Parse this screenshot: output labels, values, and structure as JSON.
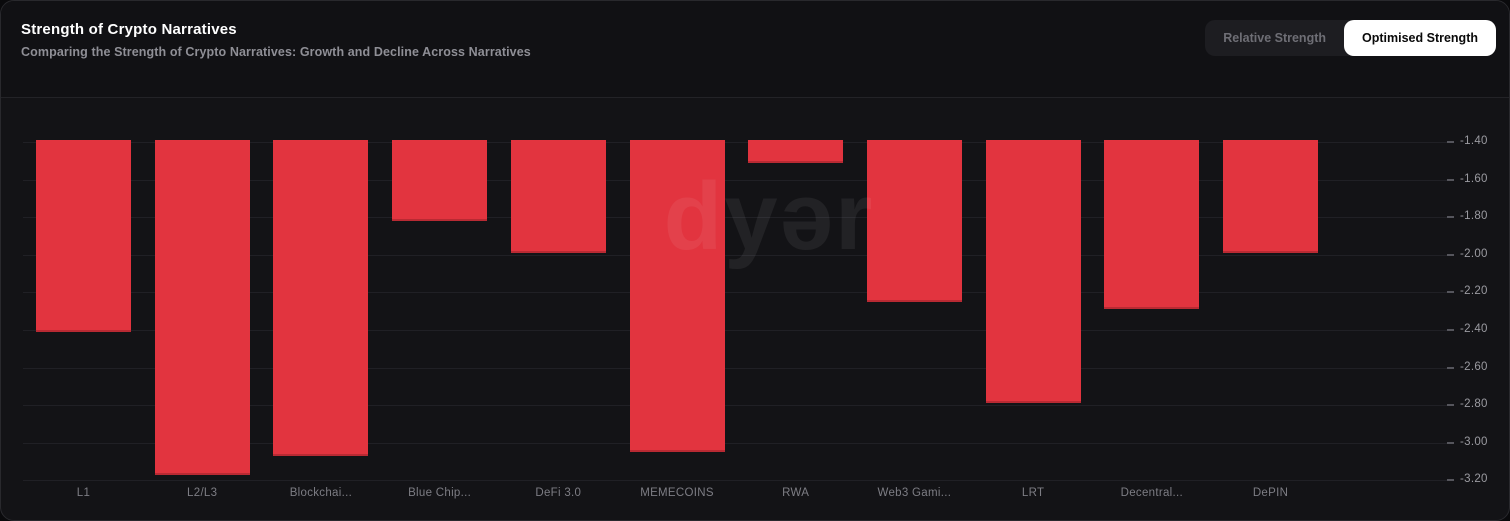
{
  "header": {
    "title": "Strength of Crypto Narratives",
    "subtitle": "Comparing the Strength of Crypto Narratives: Growth and Decline Across Narratives"
  },
  "toggle": {
    "options": [
      {
        "label": "Relative Strength",
        "active": false
      },
      {
        "label": "Optimised Strength",
        "active": true
      }
    ]
  },
  "watermark": "dyər",
  "colors": {
    "bar": "#e2343f",
    "card_background": "#131316",
    "header_background": "#111114",
    "gridline": "#202025",
    "toggle_active_background": "#ffffff",
    "toggle_active_text": "#0a0a0a",
    "toggle_inactive_text": "#6e6e75"
  },
  "chart_data": {
    "type": "bar",
    "title": "Strength of Crypto Narratives",
    "series_name": "Optimised Strength",
    "categories": [
      "L1",
      "L2/L3",
      "Blockchai...",
      "Blue Chip...",
      "DeFi 3.0",
      "MEMECOINS",
      "RWA",
      "Web3 Gami...",
      "LRT",
      "Decentral...",
      "DePIN"
    ],
    "values": [
      -2.41,
      -3.17,
      -3.07,
      -1.82,
      -1.99,
      -3.05,
      -1.51,
      -2.25,
      -2.79,
      -2.29,
      -1.99
    ],
    "bar_baseline": -1.39,
    "y_ticks": [
      -1.4,
      -1.6,
      -1.8,
      -2.0,
      -2.2,
      -2.4,
      -2.6,
      -2.8,
      -3.0,
      -3.2
    ],
    "ylim": [
      -3.22,
      -1.39
    ],
    "xlabel": "",
    "ylabel": "",
    "grid": true,
    "axis_side": "right",
    "legend": "none"
  }
}
